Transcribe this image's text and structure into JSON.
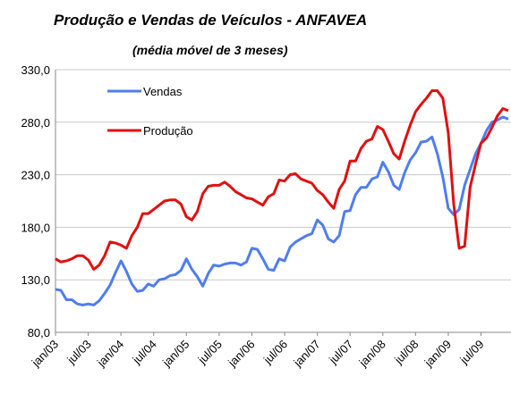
{
  "chart_data": {
    "type": "line",
    "title": "Produção e Vendas de Veículos - ANFAVEA",
    "subtitle": "(média móvel de 3 meses)",
    "categories": [
      "jan/03",
      null,
      null,
      null,
      null,
      null,
      "jul/03",
      null,
      null,
      null,
      null,
      null,
      "jan/04",
      null,
      null,
      null,
      null,
      null,
      "jul/04",
      null,
      null,
      null,
      null,
      null,
      "jan/05",
      null,
      null,
      null,
      null,
      null,
      "jul/05",
      null,
      null,
      null,
      null,
      null,
      "jan/06",
      null,
      null,
      null,
      null,
      null,
      "jul/06",
      null,
      null,
      null,
      null,
      null,
      "jan/07",
      null,
      null,
      null,
      null,
      null,
      "jul/07",
      null,
      null,
      null,
      null,
      null,
      "jan/08",
      null,
      null,
      null,
      null,
      null,
      "jul/08",
      null,
      null,
      null,
      null,
      null,
      "jan/09",
      null,
      null,
      null,
      null,
      null,
      "jul/09",
      null,
      null,
      null,
      null,
      null
    ],
    "series": [
      {
        "name": "Vendas",
        "color": "#4f7df0",
        "values": [
          121,
          120,
          111,
          111,
          107,
          106,
          107,
          106,
          110,
          117,
          125,
          137,
          148,
          138,
          126,
          119,
          120,
          126,
          124,
          130,
          131,
          134,
          135,
          139,
          150,
          140,
          133,
          124,
          136,
          144,
          143,
          145,
          146,
          146,
          144,
          147,
          160,
          159,
          150,
          140,
          139,
          150,
          148,
          161,
          166,
          169,
          172,
          174,
          187,
          182,
          169,
          166,
          172,
          195,
          196,
          211,
          218,
          218,
          226,
          228,
          242,
          233,
          220,
          216,
          232,
          244,
          251,
          261,
          262,
          266,
          250,
          228,
          198,
          192,
          197,
          220,
          235,
          250,
          260,
          272,
          280,
          282,
          285,
          283
        ]
      },
      {
        "name": "Produção",
        "color": "#e01010",
        "values": [
          150,
          147,
          148,
          150,
          153,
          153,
          149,
          140,
          144,
          153,
          166,
          165,
          163,
          160,
          172,
          180,
          193,
          193,
          197,
          201,
          205,
          206,
          206,
          202,
          190,
          187,
          195,
          212,
          219,
          220,
          220,
          223,
          219,
          214,
          211,
          208,
          207,
          204,
          201,
          209,
          212,
          225,
          224,
          230,
          231,
          226,
          224,
          222,
          215,
          211,
          204,
          198,
          216,
          224,
          243,
          243,
          255,
          262,
          264,
          276,
          273,
          262,
          250,
          245,
          262,
          277,
          290,
          297,
          303,
          310,
          310,
          303,
          270,
          202,
          160,
          162,
          218,
          240,
          260,
          265,
          275,
          286,
          293,
          291
        ]
      }
    ],
    "ylim": [
      80,
      330
    ],
    "yticks": [
      {
        "value": 80,
        "label": "80,0"
      },
      {
        "value": 130,
        "label": "130,0"
      },
      {
        "value": 180,
        "label": "180,0"
      },
      {
        "value": 230,
        "label": "230,0"
      },
      {
        "value": 280,
        "label": "280,0"
      },
      {
        "value": 330,
        "label": "330,0"
      }
    ],
    "grid": true
  }
}
